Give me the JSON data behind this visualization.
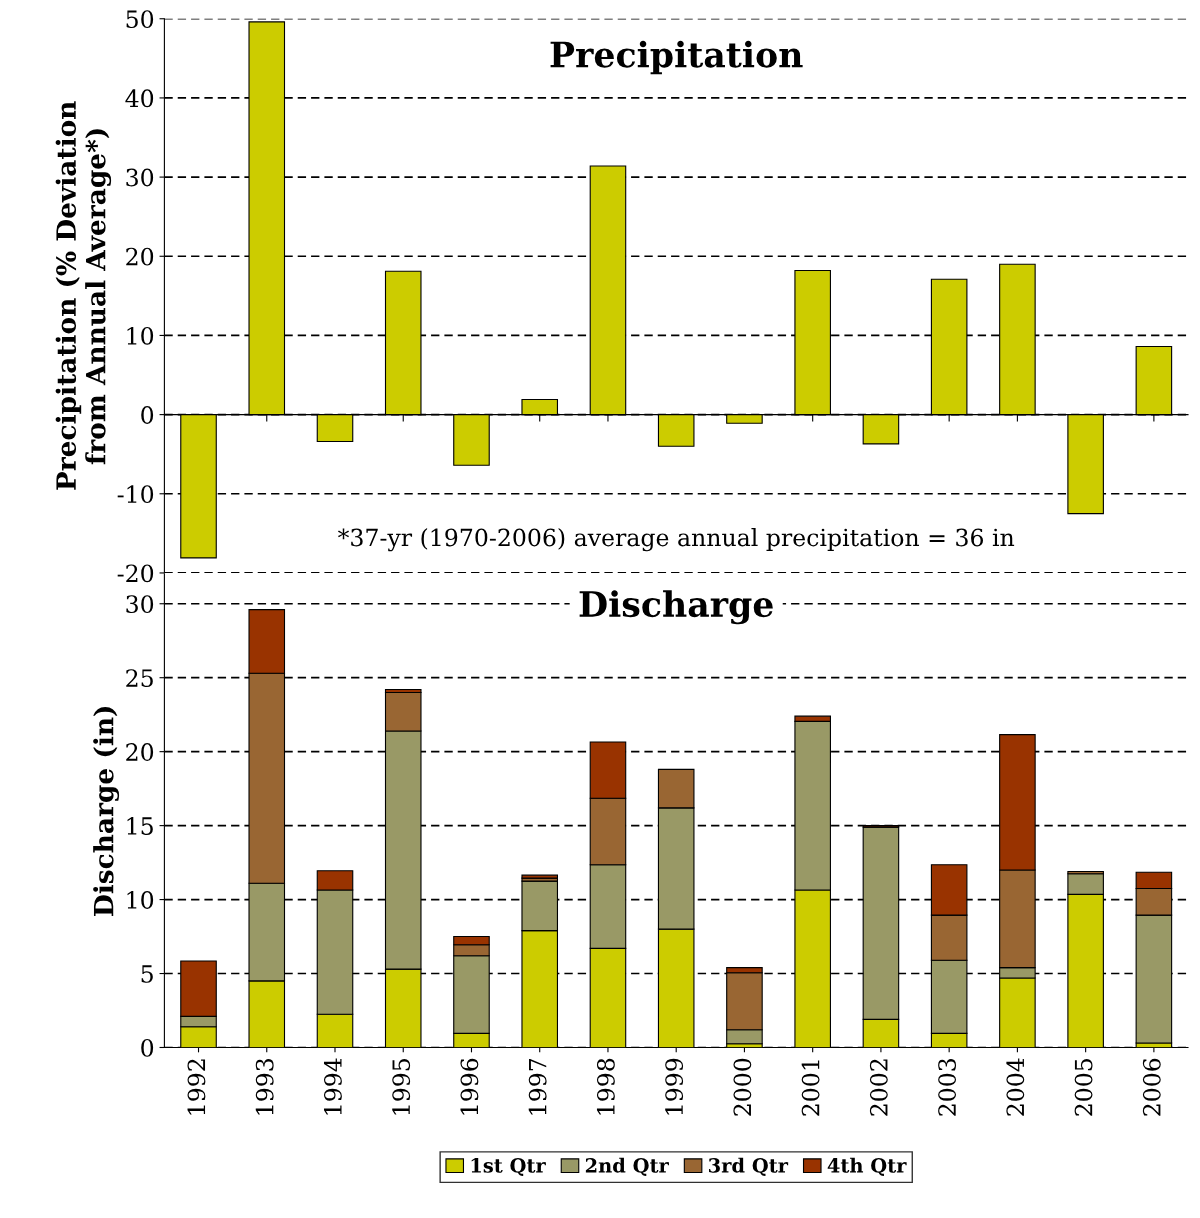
{
  "chart_data": [
    {
      "type": "bar",
      "title": "Precipitation",
      "ylabel": "Precipitation (% Deviation\nfrom Annual Average*)",
      "categories": [
        "1992",
        "1993",
        "1994",
        "1995",
        "1996",
        "1997",
        "1998",
        "1999",
        "2000",
        "2001",
        "2002",
        "2003",
        "2004",
        "2005",
        "2006"
      ],
      "series": [
        {
          "color": "#cccc00",
          "values": [
            -18.1,
            49.6,
            -3.4,
            18.1,
            -6.4,
            1.9,
            31.4,
            -4.0,
            -1.1,
            18.2,
            -3.7,
            17.1,
            19.0,
            -12.5,
            8.6
          ]
        }
      ],
      "ylim": [
        -20,
        50
      ],
      "yticks": [
        -20,
        -10,
        0,
        10,
        20,
        30,
        40,
        50
      ],
      "grid": "y",
      "tick_labels": "y",
      "annotations": [
        "*37-yr (1970-2006) average annual precipitation = 36 in"
      ]
    },
    {
      "type": "bar",
      "title": "Discharge",
      "ylabel": "Discharge (in)",
      "stacked": true,
      "categories": [
        "1992",
        "1993",
        "1994",
        "1995",
        "1996",
        "1997",
        "1998",
        "1999",
        "2000",
        "2001",
        "2002",
        "2003",
        "2004",
        "2005",
        "2006"
      ],
      "series": [
        {
          "name": "1st Qtr",
          "color": "#cccc00",
          "values": [
            1.4,
            4.5,
            2.25,
            5.3,
            0.95,
            7.9,
            6.7,
            8.0,
            0.25,
            10.65,
            1.9,
            0.95,
            4.7,
            10.35,
            0.3
          ]
        },
        {
          "name": "2nd Qtr",
          "color": "#999966",
          "values": [
            0.7,
            6.6,
            8.4,
            16.1,
            5.25,
            3.35,
            5.65,
            8.2,
            0.95,
            11.4,
            13.0,
            4.95,
            0.7,
            1.4,
            8.65
          ]
        },
        {
          "name": "3rd Qtr",
          "color": "#996633",
          "values": [
            null,
            14.2,
            null,
            2.6,
            0.75,
            0.2,
            4.5,
            2.6,
            3.85,
            null,
            null,
            3.05,
            6.6,
            0.15,
            1.8
          ]
        },
        {
          "name": "4th Qtr",
          "color": "#993300",
          "values": [
            3.75,
            4.3,
            1.3,
            0.2,
            0.55,
            0.2,
            3.8,
            null,
            0.35,
            0.35,
            0.1,
            3.4,
            9.15,
            null,
            1.1
          ]
        }
      ],
      "ylim": [
        0,
        32
      ],
      "yticks": [
        0,
        5,
        10,
        15,
        20,
        25,
        30
      ],
      "grid": "y",
      "legend": "bottom"
    }
  ]
}
